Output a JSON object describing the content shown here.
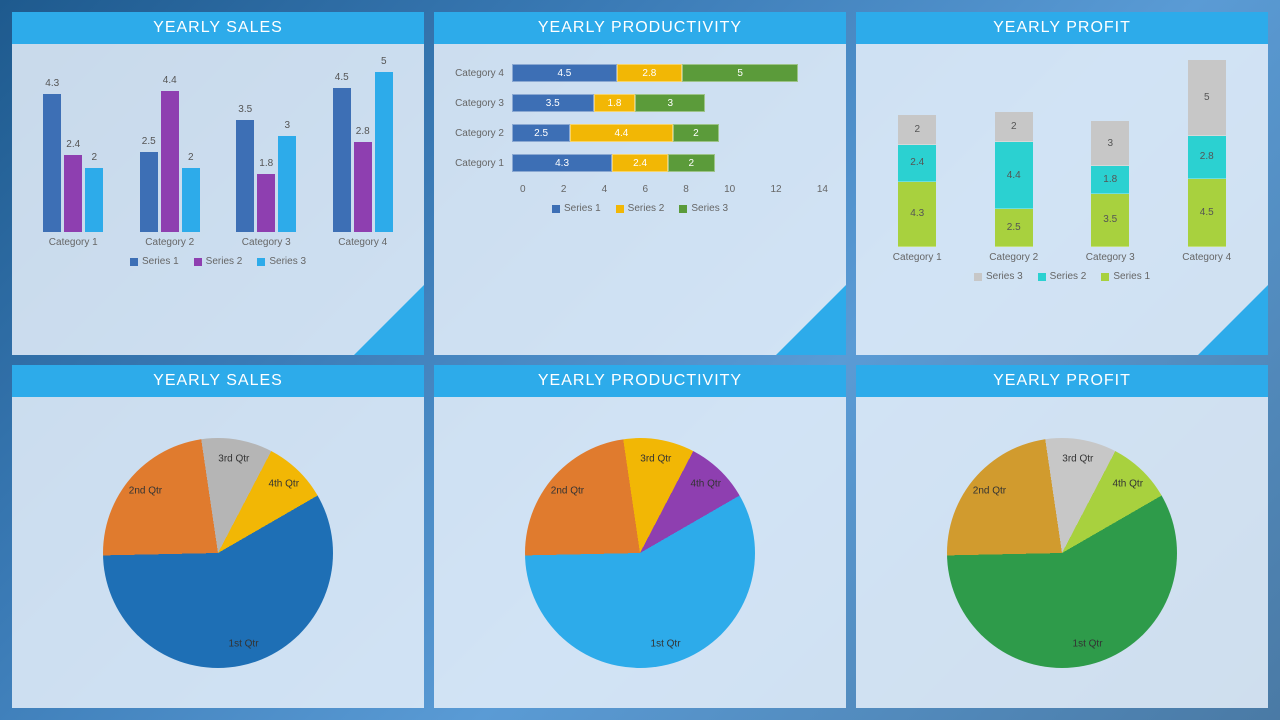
{
  "panels": {
    "sales_bar": {
      "title": "YEARLY SALES",
      "categories": [
        "Category 1",
        "Category 2",
        "Category 3",
        "Category 4"
      ],
      "series": [
        {
          "name": "Series 1",
          "color": "#3d6fb5",
          "values": [
            4.3,
            2.5,
            3.5,
            4.5
          ]
        },
        {
          "name": "Series 2",
          "color": "#8e3fb0",
          "values": [
            2.4,
            4.4,
            1.8,
            2.8
          ]
        },
        {
          "name": "Series 3",
          "color": "#2dabea",
          "values": [
            2,
            2,
            3,
            5
          ]
        }
      ],
      "max": 5
    },
    "productivity_hbar": {
      "title": "YEARLY PRODUCTIVITY",
      "rows": [
        {
          "cat": "Category 4",
          "vals": [
            4.5,
            2.8,
            5
          ]
        },
        {
          "cat": "Category 3",
          "vals": [
            3.5,
            1.8,
            3
          ]
        },
        {
          "cat": "Category 2",
          "vals": [
            2.5,
            4.4,
            2
          ]
        },
        {
          "cat": "Category 1",
          "vals": [
            4.3,
            2.4,
            2
          ]
        }
      ],
      "colors": [
        "#3d6fb5",
        "#f2b705",
        "#5b9b3a"
      ],
      "legend": [
        "Series 1",
        "Series 2",
        "Series 3"
      ],
      "xticks": [
        0,
        2,
        4,
        6,
        8,
        10,
        12,
        14
      ],
      "max": 14
    },
    "profit_stacked": {
      "title": "YEARLY PROFIT",
      "categories": [
        "Category 1",
        "Category 2",
        "Category 3",
        "Category 4"
      ],
      "stacks": [
        [
          {
            "v": 4.3,
            "c": "#a8d13e"
          },
          {
            "v": 2.4,
            "c": "#2bd1d1"
          },
          {
            "v": 2,
            "c": "#c7c7c7"
          }
        ],
        [
          {
            "v": 2.5,
            "c": "#a8d13e"
          },
          {
            "v": 4.4,
            "c": "#2bd1d1"
          },
          {
            "v": 2,
            "c": "#c7c7c7"
          }
        ],
        [
          {
            "v": 3.5,
            "c": "#a8d13e"
          },
          {
            "v": 1.8,
            "c": "#2bd1d1"
          },
          {
            "v": 3,
            "c": "#c7c7c7"
          }
        ],
        [
          {
            "v": 4.5,
            "c": "#a8d13e"
          },
          {
            "v": 2.8,
            "c": "#2bd1d1"
          },
          {
            "v": 5,
            "c": "#c7c7c7"
          }
        ]
      ],
      "max": 12.5,
      "legend": [
        {
          "name": "Series 3",
          "color": "#c7c7c7"
        },
        {
          "name": "Series 2",
          "color": "#2bd1d1"
        },
        {
          "name": "Series 1",
          "color": "#a8d13e"
        }
      ]
    },
    "sales_pie": {
      "title": "YEARLY SALES",
      "slices": [
        {
          "label": "1st Qtr",
          "value": 58,
          "color": "#1e6fb5"
        },
        {
          "label": "2nd Qtr",
          "value": 23,
          "color": "#e07b2e"
        },
        {
          "label": "3rd Qtr",
          "value": 10,
          "color": "#b5b5b5"
        },
        {
          "label": "4th Qtr",
          "value": 9,
          "color": "#f2b705"
        }
      ]
    },
    "productivity_pie": {
      "title": "YEARLY PRODUCTIVITY",
      "slices": [
        {
          "label": "1st Qtr",
          "value": 58,
          "color": "#2dabea"
        },
        {
          "label": "2nd Qtr",
          "value": 23,
          "color": "#e07b2e"
        },
        {
          "label": "3rd Qtr",
          "value": 10,
          "color": "#f2b705"
        },
        {
          "label": "4th Qtr",
          "value": 9,
          "color": "#8e3fb0"
        }
      ]
    },
    "profit_pie": {
      "title": "YEARLY PROFIT",
      "slices": [
        {
          "label": "1st Qtr",
          "value": 58,
          "color": "#2e9b4a"
        },
        {
          "label": "2nd Qtr",
          "value": 23,
          "color": "#d19b2e"
        },
        {
          "label": "3rd Qtr",
          "value": 10,
          "color": "#c7c7c7"
        },
        {
          "label": "4th Qtr",
          "value": 9,
          "color": "#a8d13e"
        }
      ]
    }
  }
}
